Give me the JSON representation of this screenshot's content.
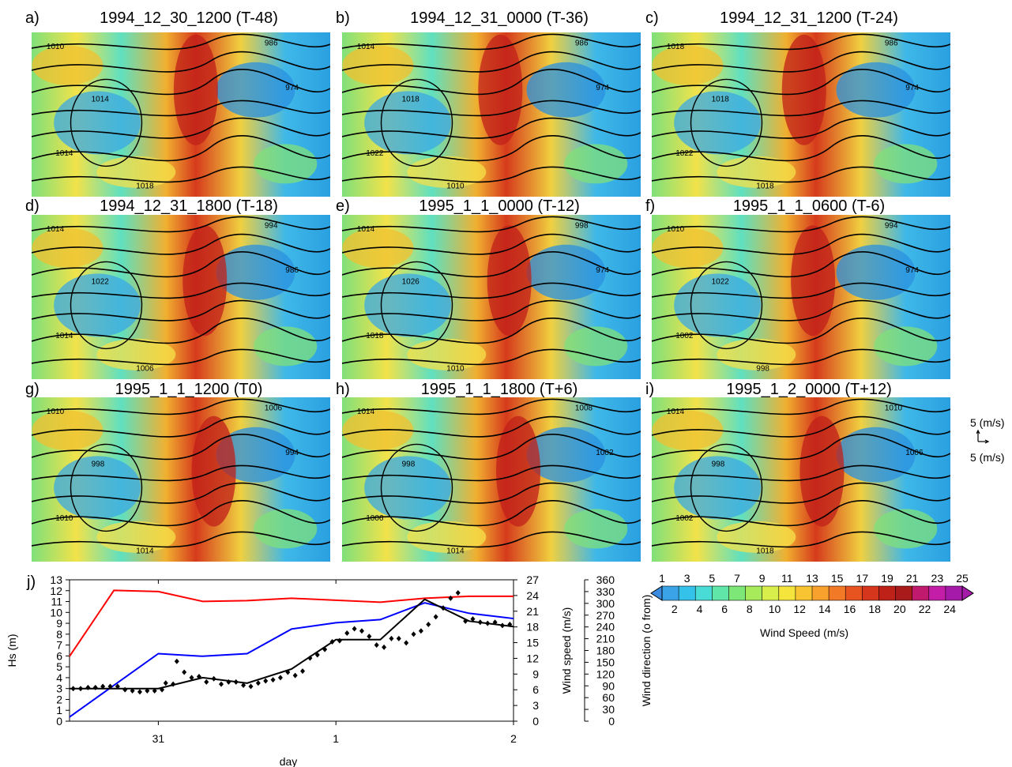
{
  "panels": [
    {
      "letter": "a)",
      "title": "1994_12_30_1200 (T-48)",
      "isobars": [
        "1010",
        "986",
        "974",
        "1014",
        "1014",
        "1018"
      ]
    },
    {
      "letter": "b)",
      "title": "1994_12_31_0000 (T-36)",
      "isobars": [
        "1014",
        "986",
        "974",
        "1018",
        "1022",
        "1010"
      ]
    },
    {
      "letter": "c)",
      "title": "1994_12_31_1200 (T-24)",
      "isobars": [
        "1018",
        "986",
        "974",
        "1018",
        "1022",
        "1018"
      ]
    },
    {
      "letter": "d)",
      "title": "1994_12_31_1800 (T-18)",
      "isobars": [
        "1014",
        "994",
        "986",
        "1022",
        "1014",
        "1006"
      ]
    },
    {
      "letter": "e)",
      "title": "1995_1_1_0000 (T-12)",
      "isobars": [
        "1014",
        "998",
        "974",
        "1026",
        "1018",
        "1010"
      ]
    },
    {
      "letter": "f)",
      "title": "1995_1_1_0600 (T-6)",
      "isobars": [
        "1010",
        "994",
        "974",
        "1022",
        "1002",
        "998"
      ]
    },
    {
      "letter": "g)",
      "title": "1995_1_1_1200 (T0)",
      "isobars": [
        "1010",
        "1006",
        "994",
        "998",
        "1010",
        "1014"
      ]
    },
    {
      "letter": "h)",
      "title": "1995_1_1_1800 (T+6)",
      "isobars": [
        "1014",
        "1008",
        "1002",
        "998",
        "1006",
        "1014"
      ]
    },
    {
      "letter": "i)",
      "title": "1995_1_2_0000 (T+12)",
      "isobars": [
        "1014",
        "1010",
        "1006",
        "998",
        "1002",
        "1018"
      ]
    }
  ],
  "vector_key": {
    "upper": "5 (m/s)",
    "lower": "5 (m/s)"
  },
  "colorbar": {
    "label": "Wind Speed (m/s)",
    "top_ticks": [
      "1",
      "3",
      "5",
      "7",
      "9",
      "11",
      "13",
      "15",
      "17",
      "19",
      "21",
      "23",
      "25"
    ],
    "bottom_ticks": [
      "2",
      "4",
      "6",
      "8",
      "10",
      "12",
      "14",
      "16",
      "18",
      "20",
      "22",
      "24"
    ],
    "colors": [
      "#3aa2e6",
      "#35c2ea",
      "#49dcd7",
      "#5fe6a8",
      "#7de878",
      "#a7ea5a",
      "#d8ee4a",
      "#f4e43c",
      "#f8c431",
      "#f8a12c",
      "#f27a26",
      "#e8541f",
      "#d6361c",
      "#be2118",
      "#a91a1a",
      "#c01a6e",
      "#c41ea8",
      "#a51aa8"
    ]
  },
  "chart_data": {
    "type": "line",
    "panel_letter": "j)",
    "xlabel": "day",
    "x_ticks": [
      {
        "label": "31",
        "t": 12
      },
      {
        "label": "1",
        "t": 36
      },
      {
        "label": "2",
        "t": 60
      }
    ],
    "xlim": [
      0,
      60
    ],
    "axes": {
      "hs": {
        "label": "Hs (m)",
        "lim": [
          0,
          13
        ],
        "ticks": [
          "0",
          "1",
          "2",
          "3",
          "4",
          "5",
          "6",
          "7",
          "8",
          "9",
          "10",
          "11",
          "12",
          "13"
        ]
      },
      "wind_speed": {
        "label": "Wind speed (m/s)",
        "lim": [
          0,
          27
        ],
        "ticks": [
          "0",
          "3",
          "6",
          "9",
          "12",
          "15",
          "18",
          "21",
          "24",
          "27"
        ]
      },
      "wind_direction": {
        "label": "Wind direction (o from)",
        "lim": [
          0,
          360
        ],
        "ticks": [
          "0",
          "30",
          "60",
          "90",
          "120",
          "150",
          "180",
          "210",
          "240",
          "270",
          "300",
          "330",
          "360"
        ]
      }
    },
    "series": [
      {
        "color": "#ff0000",
        "axis": "wind_direction",
        "x": [
          0,
          6,
          12,
          18,
          24,
          30,
          36,
          42,
          48,
          54,
          60
        ],
        "y": [
          165,
          333,
          330,
          305,
          307,
          313,
          308,
          303,
          313,
          318,
          318
        ]
      },
      {
        "color": "#0000ff",
        "axis": "wind_speed",
        "x": [
          0,
          12,
          18,
          24,
          30,
          36,
          42,
          48,
          54,
          60
        ],
        "y": [
          0.8,
          12.9,
          12.4,
          12.9,
          17.6,
          18.8,
          19.4,
          22.6,
          20.6,
          19.6
        ]
      },
      {
        "color": "#000000",
        "axis": "hs",
        "x": [
          0,
          12,
          18,
          24,
          30,
          36,
          42,
          48,
          54,
          60
        ],
        "y": [
          3.0,
          3.0,
          4.0,
          3.5,
          4.8,
          7.5,
          7.5,
          11.2,
          9.2,
          8.7
        ]
      },
      {
        "color": "#000000",
        "axis": "hs",
        "marker": "diamond",
        "x": [
          0.5,
          1.5,
          2.5,
          3.5,
          4.5,
          5.5,
          6.5,
          7.5,
          8.5,
          9.5,
          10.5,
          11.5,
          12.5,
          13.0,
          14.0,
          14.5,
          15.5,
          16.5,
          17.5,
          18.5,
          19.5,
          20.5,
          21.5,
          22.5,
          23.5,
          24.5,
          25.5,
          26.5,
          27.5,
          28.5,
          29.5,
          30.5,
          31.5,
          32.5,
          33.5,
          34.5,
          35.5,
          36.5,
          37.5,
          38.5,
          39.5,
          40.5,
          41.5,
          42.5,
          43.5,
          44.5,
          45.5,
          46.5,
          47.5,
          48.5,
          49.5,
          50.5,
          51.5,
          52.5,
          53.5,
          54.5,
          55.5,
          56.5,
          57.5,
          58.5,
          59.5
        ],
        "y": [
          3.0,
          3.0,
          3.1,
          3.1,
          3.2,
          3.2,
          3.2,
          2.9,
          2.8,
          2.7,
          2.8,
          2.8,
          2.9,
          3.5,
          3.4,
          5.5,
          4.5,
          4.0,
          4.1,
          3.6,
          3.9,
          3.4,
          3.6,
          3.6,
          3.3,
          3.2,
          3.5,
          3.7,
          3.8,
          4.0,
          4.5,
          4.2,
          4.6,
          5.8,
          6.1,
          6.6,
          7.3,
          7.4,
          8.1,
          8.5,
          8.3,
          7.8,
          7.0,
          6.8,
          7.6,
          7.6,
          7.2,
          8.0,
          8.3,
          8.9,
          9.6,
          10.4,
          11.3,
          11.8,
          9.2,
          9.4,
          9.1,
          9.0,
          9.1,
          8.8,
          8.9
        ]
      }
    ]
  }
}
